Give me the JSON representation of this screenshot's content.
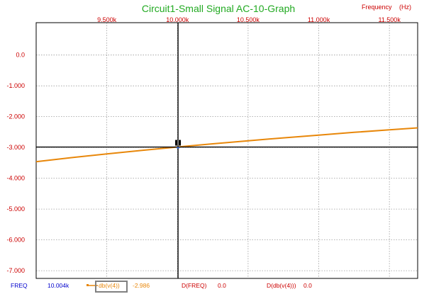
{
  "chart_data": {
    "type": "line",
    "title": "Circuit1-Small Signal AC-10-Graph",
    "xlabel": "Frequency",
    "xunit": "(Hz)",
    "ylabel": "",
    "xlim": [
      9000,
      11700
    ],
    "ylim": [
      -7250,
      1050
    ],
    "x_ticks": [
      {
        "value": 9500,
        "label": "9.500k"
      },
      {
        "value": 10000,
        "label": "10.000k"
      },
      {
        "value": 10500,
        "label": "10.500k"
      },
      {
        "value": 11000,
        "label": "11.000k"
      },
      {
        "value": 11500,
        "label": "11.500k"
      }
    ],
    "y_ticks": [
      {
        "value": 0,
        "label": "0.0"
      },
      {
        "value": -1000,
        "label": "-1.000"
      },
      {
        "value": -2000,
        "label": "-2.000"
      },
      {
        "value": -3000,
        "label": "-3.000"
      },
      {
        "value": -4000,
        "label": "-4.000"
      },
      {
        "value": -5000,
        "label": "-5.000"
      },
      {
        "value": -6000,
        "label": "-6.000"
      },
      {
        "value": -7000,
        "label": "-7.000"
      }
    ],
    "grid": true,
    "series": [
      {
        "name": "db(v(4))",
        "color": "#e8870a",
        "x": [
          9000,
          9250,
          9500,
          9750,
          10000,
          10250,
          10500,
          10750,
          11000,
          11250,
          11500,
          11700
        ],
        "y": [
          -3460,
          -3330,
          -3210,
          -3095,
          -2986,
          -2882,
          -2782,
          -2688,
          -2598,
          -2510,
          -2428,
          -2365
        ]
      }
    ],
    "cursor": {
      "x": 10004,
      "y": -2986,
      "color": "#000000"
    }
  },
  "status_bar": {
    "freq_label": "FREQ",
    "freq_value": "10.004k",
    "trace_label": "db(v(4))",
    "trace_value": "-2.986",
    "dfreq_label": "D(FREQ)",
    "dfreq_value": "0.0",
    "dtrace_label": "D(db(v(4)))",
    "dtrace_value": "0.0"
  },
  "colors": {
    "title": "#22aa22",
    "axis_text": "#cc0000",
    "freq_text": "#0000cc",
    "trace_text": "#e8870a"
  }
}
